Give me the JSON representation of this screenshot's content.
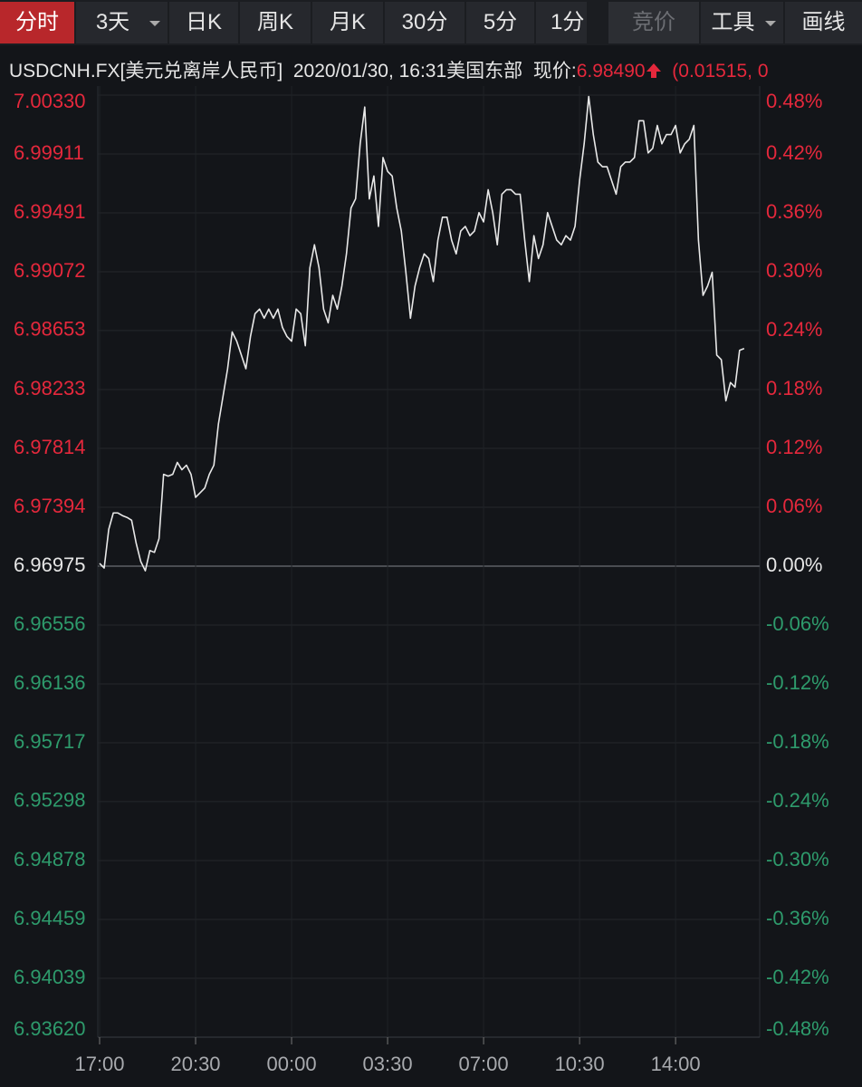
{
  "toolbar": {
    "buttons": [
      "分时",
      "3天",
      "日K",
      "周K",
      "月K",
      "30分",
      "5分",
      "1分",
      "竞价",
      "工具",
      "画线"
    ]
  },
  "quote": {
    "symbol": "USDCNH.FX[美元兑离岸人民币]",
    "time": "2020/01/30, 16:31美国东部",
    "price_label": "现价:",
    "price": "6.98490",
    "change": "(0.01515, 0"
  },
  "chart_data": {
    "type": "line",
    "categories": [
      "17:00",
      null,
      null,
      null,
      null,
      null,
      null,
      null,
      null,
      null,
      null,
      null,
      null,
      null,
      null,
      null,
      null,
      null,
      null,
      null,
      null,
      "20:30",
      null,
      null,
      null,
      null,
      null,
      null,
      null,
      null,
      null,
      null,
      null,
      null,
      null,
      null,
      null,
      null,
      null,
      null,
      null,
      null,
      "00:00",
      null,
      null,
      null,
      null,
      null,
      null,
      null,
      null,
      null,
      null,
      null,
      null,
      null,
      null,
      null,
      null,
      null,
      null,
      null,
      null,
      "03:30",
      null,
      null,
      null,
      null,
      null,
      null,
      null,
      null,
      null,
      null,
      null,
      null,
      null,
      null,
      null,
      null,
      null,
      null,
      null,
      null,
      "07:00",
      null,
      null,
      null,
      null,
      null,
      null,
      null,
      null,
      null,
      null,
      null,
      null,
      null,
      null,
      null,
      null,
      null,
      null,
      null,
      null,
      "10:30",
      null,
      null,
      null,
      null,
      null,
      null,
      null,
      null,
      null,
      null,
      null,
      null,
      null,
      null,
      null,
      null,
      null,
      null,
      null,
      null,
      "14:00",
      null,
      null,
      null,
      null,
      null,
      null,
      null,
      null,
      null,
      null,
      null,
      null,
      null,
      null,
      null,
      null,
      null,
      null
    ],
    "series": [
      {
        "name": "USDCNH.FX",
        "color": "#e8e8e8",
        "values": [
          6.96995,
          6.96962,
          6.97237,
          6.97354,
          6.97354,
          6.97335,
          6.97322,
          6.97302,
          6.97138,
          6.97008,
          6.96942,
          6.97086,
          6.97073,
          6.97171,
          6.97629,
          6.97616,
          6.97629,
          6.97714,
          6.97662,
          6.97694,
          6.97629,
          6.97465,
          6.97498,
          6.97531,
          6.97629,
          6.97694,
          6.97989,
          6.98185,
          6.98381,
          6.98643,
          6.98577,
          6.98479,
          6.98381,
          6.9861,
          6.98773,
          6.98806,
          6.98741,
          6.98806,
          6.98741,
          6.98806,
          6.98675,
          6.9861,
          6.98577,
          6.98806,
          6.98773,
          6.98545,
          6.991,
          6.99264,
          6.991,
          6.98806,
          6.98708,
          6.98904,
          6.98806,
          6.9897,
          6.99199,
          6.99526,
          6.99591,
          6.99983,
          7.00245,
          6.99591,
          6.99754,
          6.99395,
          6.99885,
          6.99787,
          6.99754,
          6.99526,
          6.99362,
          6.99068,
          6.98741,
          6.9897,
          6.991,
          6.99199,
          6.99166,
          6.99002,
          6.99297,
          6.9946,
          6.9946,
          6.99297,
          6.99199,
          6.99362,
          6.99395,
          6.99329,
          6.99362,
          6.99493,
          6.99427,
          6.99656,
          6.99493,
          6.99264,
          6.99624,
          6.99656,
          6.99656,
          6.99624,
          6.99624,
          6.99297,
          6.99002,
          6.99329,
          6.99166,
          6.99264,
          6.99493,
          6.99395,
          6.99297,
          6.99264,
          6.99329,
          6.99297,
          6.99395,
          6.99722,
          6.99983,
          7.0032,
          7.00049,
          6.99853,
          6.9982,
          6.9982,
          6.99722,
          6.99624,
          6.9982,
          6.99853,
          6.99853,
          6.99885,
          7.00147,
          7.00147,
          6.99918,
          6.99951,
          7.00114,
          6.99983,
          7.00049,
          7.00049,
          7.00114,
          6.99918,
          6.99983,
          7.00016,
          7.00114,
          6.99297,
          6.98904,
          6.9897,
          6.99068,
          6.98479,
          6.98446,
          6.98152,
          6.98283,
          6.9825,
          6.98512,
          6.98525,
          null,
          null,
          null
        ]
      }
    ],
    "ylim": [
      6.9362,
      7.0033
    ],
    "yticks": [
      {
        "value": 7.0033,
        "label": "7.00330"
      },
      6.99911,
      6.99491,
      6.99072,
      6.98653,
      6.98233,
      6.97814,
      6.97394,
      6.96975,
      6.96556,
      6.96136,
      6.95717,
      6.95298,
      6.94878,
      6.94459,
      6.94039,
      {
        "value": 6.9362,
        "label": "6.93620"
      }
    ],
    "y2lim": [
      -0.48,
      0.48
    ],
    "y2ticks": [
      {
        "value": 0.48,
        "label": "0.48%"
      },
      {
        "value": 0.42,
        "label": "0.42%"
      },
      {
        "value": 0.36,
        "label": "0.36%"
      },
      {
        "value": 0.3,
        "label": "0.30%"
      },
      {
        "value": 0.24,
        "label": "0.24%"
      },
      {
        "value": 0.18,
        "label": "0.18%"
      },
      {
        "value": 0.12,
        "label": "0.12%"
      },
      {
        "value": 0.06,
        "label": "0.06%"
      },
      {
        "value": 0,
        "label": "0.00%"
      },
      {
        "value": -0.06,
        "label": "-0.06%"
      },
      {
        "value": -0.12,
        "label": "-0.12%"
      },
      {
        "value": -0.18,
        "label": "-0.18%"
      },
      {
        "value": -0.24,
        "label": "-0.24%"
      },
      {
        "value": -0.3,
        "label": "-0.30%"
      },
      {
        "value": -0.36,
        "label": "-0.36%"
      },
      {
        "value": -0.42,
        "label": "-0.42%"
      },
      {
        "value": -0.48,
        "label": "-0.48%"
      }
    ],
    "grid": true,
    "up_color": "#e5283c",
    "down_color": "#2e9b6c",
    "flat_color": "#e6e6e6"
  }
}
